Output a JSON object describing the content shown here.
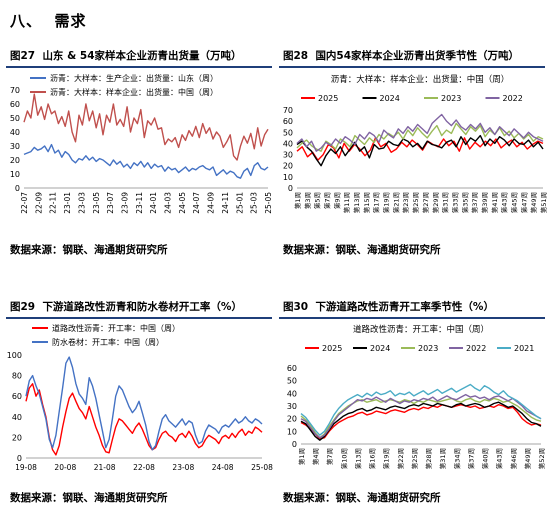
{
  "section": {
    "number": "八、",
    "title": "需求"
  },
  "source_text": "数据来源：钢联、海通期货研究所",
  "colors": {
    "red": "#ff0000",
    "blue": "#4472c4",
    "black": "#000000",
    "green": "#9bbb59",
    "purple": "#8064a2",
    "cyan": "#4bacc6",
    "title_rule": "#1f3f7a"
  },
  "chart_data": [
    {
      "id": "fig27",
      "figure_label": "图27",
      "title": "山东 & 54家样本企业沥青出货量（万吨）",
      "type": "line",
      "legend_position": "top-left",
      "ylim": [
        0,
        70
      ],
      "yticks": [
        0,
        10,
        20,
        30,
        40,
        50,
        60,
        70
      ],
      "x_tick_labels": [
        "22-07",
        "22-09",
        "22-11",
        "23-01",
        "23-03",
        "23-05",
        "23-07",
        "23-09",
        "23-11",
        "24-01",
        "24-03",
        "24-05",
        "24-07",
        "24-09",
        "24-11",
        "25-01",
        "25-03",
        "25-05"
      ],
      "series": [
        {
          "name": "沥青：大样本：生产企业：出货量：山东（周）",
          "color": "#4472c4",
          "values": [
            24,
            25,
            26,
            29,
            27,
            28,
            30,
            26,
            31,
            25,
            27,
            22,
            26,
            24,
            20,
            18,
            21,
            20,
            23,
            20,
            22,
            19,
            21,
            20,
            18,
            16,
            20,
            17,
            19,
            15,
            17,
            14,
            18,
            16,
            19,
            15,
            18,
            14,
            17,
            15,
            16,
            12,
            15,
            13,
            14,
            11,
            13,
            15,
            12,
            14,
            13,
            15,
            16,
            14,
            13,
            15,
            9,
            11,
            13,
            10,
            12,
            11,
            8,
            7,
            12,
            14,
            9,
            16,
            18,
            14,
            13,
            15
          ]
        },
        {
          "name": "沥青：大样本：样本企业：出货量：中国（周）",
          "color": "#c0504d",
          "values": [
            47,
            55,
            50,
            67,
            52,
            58,
            49,
            60,
            53,
            55,
            46,
            51,
            44,
            55,
            40,
            33,
            52,
            45,
            60,
            48,
            55,
            43,
            53,
            38,
            52,
            47,
            60,
            45,
            49,
            44,
            58,
            40,
            50,
            46,
            56,
            36,
            48,
            45,
            50,
            42,
            43,
            31,
            35,
            33,
            36,
            29,
            38,
            34,
            41,
            37,
            44,
            36,
            46,
            39,
            43,
            35,
            40,
            37,
            29,
            33,
            38,
            23,
            20,
            30,
            37,
            32,
            39,
            28,
            43,
            30,
            38,
            42
          ]
        }
      ]
    },
    {
      "id": "fig28",
      "figure_label": "图28",
      "title": "国内54家样本企业沥青出货季节性（万吨）",
      "type": "line",
      "subtitle": "沥青：大样本：样本企业：出货量：中国（周）",
      "legend_position": "top",
      "ylim": [
        0,
        70
      ],
      "yticks": [
        0,
        10,
        20,
        30,
        40,
        50,
        60,
        70
      ],
      "x_tick_labels": [
        "第1周",
        "第3周",
        "第5周",
        "第7周",
        "第9周",
        "第11周",
        "第13周",
        "第15周",
        "第17周",
        "第19周",
        "第21周",
        "第23周",
        "第25周",
        "第27周",
        "第29周",
        "第31周",
        "第33周",
        "第35周",
        "第37周",
        "第39周",
        "第41周",
        "第43周",
        "第45周",
        "第47周",
        "第49周",
        "第51周"
      ],
      "series": [
        {
          "name": "2025",
          "color": "#ff0000",
          "values": [
            33,
            37,
            28,
            32,
            25,
            30,
            39,
            36,
            27,
            40,
            33,
            39,
            35,
            29,
            34,
            45,
            37,
            40,
            32,
            35,
            41,
            37,
            43,
            39,
            34,
            42,
            39,
            37,
            44,
            38,
            42,
            33,
            45,
            35,
            41,
            37,
            42,
            38,
            44,
            36,
            40,
            43,
            37,
            41,
            35,
            39,
            42,
            40
          ]
        },
        {
          "name": "2024",
          "color": "#000000",
          "values": [
            39,
            42,
            37,
            33,
            26,
            20,
            29,
            35,
            31,
            37,
            29,
            35,
            41,
            33,
            37,
            27,
            39,
            35,
            36,
            42,
            39,
            38,
            44,
            42,
            37,
            40,
            35,
            42,
            39,
            38,
            36,
            41,
            43,
            37,
            46,
            39,
            45,
            42,
            47,
            38,
            44,
            40,
            46,
            43,
            38,
            44,
            40,
            39,
            43,
            37,
            41,
            35
          ]
        },
        {
          "name": "2023",
          "color": "#9bbb59",
          "values": [
            36,
            40,
            43,
            38,
            35,
            33,
            42,
            39,
            35,
            44,
            41,
            37,
            47,
            43,
            39,
            45,
            41,
            48,
            44,
            49,
            46,
            50,
            44,
            52,
            47,
            54,
            49,
            45,
            51,
            56,
            47,
            52,
            49,
            58,
            53,
            48,
            55,
            51,
            56,
            46,
            52,
            48,
            54,
            47,
            51,
            45,
            49,
            44,
            48,
            42,
            46,
            44
          ]
        },
        {
          "name": "2022",
          "color": "#8064a2",
          "values": [
            40,
            44,
            37,
            42,
            33,
            36,
            41,
            38,
            44,
            40,
            46,
            43,
            39,
            48,
            44,
            50,
            47,
            41,
            52,
            48,
            45,
            53,
            49,
            55,
            51,
            57,
            53,
            49,
            58,
            62,
            66,
            60,
            56,
            61,
            55,
            52,
            57,
            53,
            58,
            50,
            54,
            48,
            55,
            51,
            47,
            53,
            49,
            45,
            50,
            46,
            44,
            42
          ]
        }
      ]
    },
    {
      "id": "fig29",
      "figure_label": "图29",
      "title": "下游道路改性沥青和防水卷材开工率（%）",
      "type": "line",
      "legend_position": "top-left",
      "ylim": [
        0,
        100
      ],
      "yticks": [
        0,
        20,
        40,
        60,
        80,
        100
      ],
      "x_tick_labels": [
        "19-08",
        "20-08",
        "21-08",
        "22-08",
        "23-08",
        "24-08",
        "25-08"
      ],
      "series": [
        {
          "name": "道路改性沥青：开工率：中国（周）",
          "color": "#ff0000",
          "values": [
            55,
            68,
            72,
            60,
            66,
            52,
            40,
            20,
            8,
            3,
            12,
            30,
            45,
            58,
            63,
            55,
            48,
            44,
            38,
            50,
            40,
            30,
            22,
            12,
            6,
            5,
            18,
            30,
            38,
            36,
            32,
            28,
            24,
            30,
            34,
            28,
            20,
            12,
            8,
            10,
            18,
            24,
            26,
            22,
            20,
            16,
            22,
            24,
            20,
            26,
            21,
            14,
            10,
            12,
            18,
            22,
            20,
            18,
            14,
            20,
            22,
            19,
            24,
            20,
            25,
            28,
            22,
            26,
            24,
            30,
            28,
            25
          ]
        },
        {
          "name": "防水卷材：开工率：中国（周）",
          "color": "#4472c4",
          "values": [
            60,
            75,
            80,
            70,
            62,
            50,
            38,
            18,
            10,
            22,
            45,
            68,
            92,
            98,
            88,
            72,
            62,
            58,
            52,
            78,
            70,
            58,
            42,
            26,
            10,
            18,
            38,
            60,
            70,
            66,
            58,
            50,
            44,
            48,
            55,
            44,
            32,
            16,
            8,
            12,
            26,
            38,
            42,
            36,
            33,
            30,
            34,
            38,
            32,
            36,
            34,
            22,
            14,
            16,
            26,
            32,
            30,
            28,
            24,
            30,
            32,
            30,
            34,
            38,
            34,
            36,
            40,
            36,
            34,
            38,
            36,
            33
          ]
        }
      ]
    },
    {
      "id": "fig30",
      "figure_label": "图30",
      "title": "下游道路改性沥青开工率季节性（%）",
      "type": "line",
      "subtitle": "道路改性沥青：开工率：中国（周）",
      "legend_position": "top",
      "ylim": [
        0,
        60
      ],
      "yticks": [
        0,
        10,
        20,
        30,
        40,
        50,
        60
      ],
      "x_tick_labels": [
        "第1周",
        "第4周",
        "第7周",
        "第10周",
        "第13周",
        "第16周",
        "第19周",
        "第22周",
        "第25周",
        "第28周",
        "第31周",
        "第34周",
        "第37周",
        "第40周",
        "第43周",
        "第46周",
        "第49周",
        "第52周"
      ],
      "series": [
        {
          "name": "2025",
          "color": "#ff0000",
          "values": [
            17,
            15,
            12,
            8,
            4,
            5,
            10,
            14,
            17,
            19,
            21,
            22,
            24,
            25,
            23,
            24,
            26,
            25,
            24,
            26,
            27,
            26,
            25,
            27,
            28,
            27,
            29,
            28,
            30,
            29,
            31,
            30,
            29,
            30,
            31,
            30,
            29,
            30,
            28,
            29,
            30,
            29,
            31,
            30,
            28,
            29,
            25,
            20,
            17,
            15,
            16,
            15
          ]
        },
        {
          "name": "2024",
          "color": "#000000",
          "values": [
            18,
            16,
            11,
            6,
            3,
            6,
            11,
            16,
            19,
            22,
            24,
            25,
            27,
            28,
            26,
            27,
            29,
            28,
            27,
            29,
            30,
            29,
            28,
            30,
            31,
            30,
            32,
            31,
            30,
            32,
            31,
            30,
            29,
            31,
            32,
            30,
            31,
            32,
            31,
            29,
            30,
            32,
            33,
            31,
            29,
            30,
            27,
            24,
            20,
            17,
            16,
            14
          ]
        },
        {
          "name": "2023",
          "color": "#9bbb59",
          "values": [
            22,
            19,
            15,
            9,
            5,
            8,
            14,
            19,
            24,
            27,
            30,
            32,
            34,
            35,
            33,
            34,
            35,
            33,
            34,
            35,
            34,
            33,
            35,
            34,
            32,
            34,
            33,
            35,
            34,
            33,
            34,
            35,
            36,
            34,
            33,
            35,
            36,
            34,
            33,
            35,
            34,
            36,
            35,
            33,
            34,
            32,
            30,
            27,
            24,
            21,
            19,
            18
          ]
        },
        {
          "name": "2022",
          "color": "#8064a2",
          "values": [
            20,
            18,
            13,
            8,
            5,
            7,
            12,
            18,
            23,
            26,
            29,
            32,
            35,
            34,
            36,
            35,
            37,
            35,
            33,
            36,
            34,
            32,
            34,
            33,
            35,
            34,
            36,
            35,
            37,
            34,
            36,
            38,
            36,
            35,
            37,
            39,
            37,
            38,
            36,
            37,
            35,
            37,
            38,
            36,
            34,
            36,
            33,
            30,
            26,
            24,
            22,
            20
          ]
        },
        {
          "name": "2021",
          "color": "#4bacc6",
          "values": [
            24,
            21,
            16,
            11,
            7,
            10,
            16,
            23,
            28,
            32,
            35,
            37,
            39,
            37,
            40,
            38,
            41,
            39,
            40,
            42,
            38,
            40,
            39,
            41,
            38,
            40,
            42,
            39,
            41,
            43,
            40,
            42,
            44,
            41,
            43,
            45,
            47,
            44,
            42,
            46,
            44,
            41,
            39,
            42,
            38,
            36,
            34,
            31,
            28,
            25,
            22,
            20
          ]
        }
      ]
    }
  ]
}
